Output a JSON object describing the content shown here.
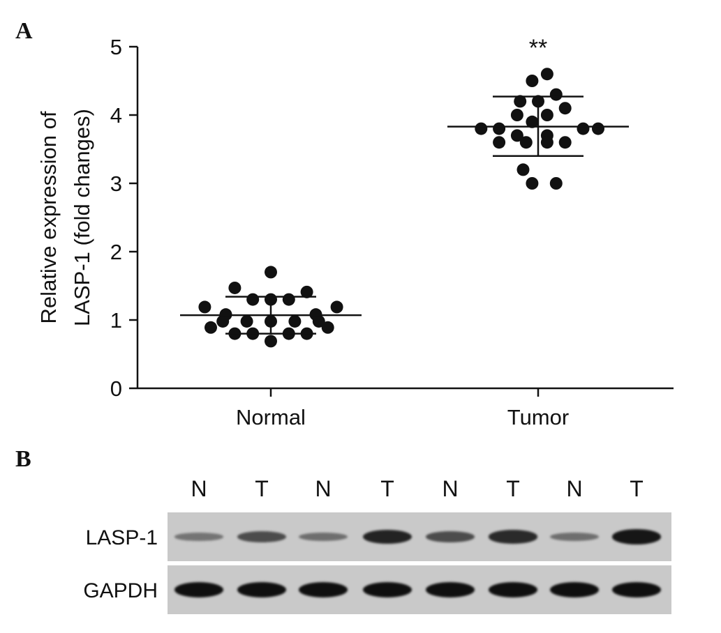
{
  "panels": {
    "a_label": "A",
    "b_label": "B"
  },
  "chart_data": {
    "type": "scatter",
    "title": "",
    "ylabel_line1": "Relative expression of",
    "ylabel_line2": "LASP-1 (fold changes)",
    "xlabel": "",
    "ylim": [
      0,
      5
    ],
    "yticks": [
      "0",
      "1",
      "2",
      "3",
      "4",
      "5"
    ],
    "categories": [
      "Normal",
      "Tumor"
    ],
    "significance": {
      "category": "Tumor",
      "text": "**"
    },
    "grid": false,
    "series": [
      {
        "category": "Normal",
        "mean": 1.07,
        "sd_low": 0.8,
        "sd_high": 1.34,
        "points": [
          {
            "y": 1.7,
            "off": 0.0
          },
          {
            "y": 1.47,
            "off": -1.2
          },
          {
            "y": 1.41,
            "off": 1.2
          },
          {
            "y": 1.3,
            "off": -0.6
          },
          {
            "y": 1.3,
            "off": 0.0
          },
          {
            "y": 1.3,
            "off": 0.6
          },
          {
            "y": 1.19,
            "off": -2.2
          },
          {
            "y": 1.19,
            "off": 2.2
          },
          {
            "y": 1.08,
            "off": -1.5
          },
          {
            "y": 1.08,
            "off": 1.5
          },
          {
            "y": 0.98,
            "off": -1.6
          },
          {
            "y": 0.98,
            "off": -0.8
          },
          {
            "y": 0.98,
            "off": 0.0
          },
          {
            "y": 0.98,
            "off": 0.8
          },
          {
            "y": 0.98,
            "off": 1.6
          },
          {
            "y": 0.89,
            "off": -2.0
          },
          {
            "y": 0.89,
            "off": 1.9
          },
          {
            "y": 0.8,
            "off": -1.2
          },
          {
            "y": 0.8,
            "off": -0.6
          },
          {
            "y": 0.8,
            "off": 0.6
          },
          {
            "y": 0.8,
            "off": 1.2
          },
          {
            "y": 0.69,
            "off": 0.0
          }
        ]
      },
      {
        "category": "Tumor",
        "mean": 3.83,
        "sd_low": 3.4,
        "sd_high": 4.27,
        "points": [
          {
            "y": 4.6,
            "off": 0.3
          },
          {
            "y": 4.5,
            "off": -0.2
          },
          {
            "y": 4.3,
            "off": 0.6
          },
          {
            "y": 4.2,
            "off": -0.6
          },
          {
            "y": 4.2,
            "off": 0.0
          },
          {
            "y": 4.1,
            "off": 0.9
          },
          {
            "y": 4.0,
            "off": -0.7
          },
          {
            "y": 4.0,
            "off": 0.3
          },
          {
            "y": 3.9,
            "off": -0.2
          },
          {
            "y": 3.8,
            "off": -1.9
          },
          {
            "y": 3.8,
            "off": -1.3
          },
          {
            "y": 3.8,
            "off": 1.5
          },
          {
            "y": 3.8,
            "off": 2.0
          },
          {
            "y": 3.7,
            "off": -0.7
          },
          {
            "y": 3.7,
            "off": 0.3
          },
          {
            "y": 3.6,
            "off": -1.3
          },
          {
            "y": 3.6,
            "off": -0.4
          },
          {
            "y": 3.6,
            "off": 0.3
          },
          {
            "y": 3.6,
            "off": 0.9
          },
          {
            "y": 3.2,
            "off": -0.5
          },
          {
            "y": 3.0,
            "off": -0.2
          },
          {
            "y": 3.0,
            "off": 0.6
          }
        ]
      }
    ]
  },
  "blot": {
    "lanes": [
      "N",
      "T",
      "N",
      "T",
      "N",
      "T",
      "N",
      "T"
    ],
    "rows": [
      {
        "label": "LASP-1",
        "intensities": [
          0.25,
          0.55,
          0.3,
          0.85,
          0.55,
          0.8,
          0.3,
          0.95
        ]
      },
      {
        "label": "GAPDH",
        "intensities": [
          1,
          1,
          1,
          1,
          1,
          1,
          1,
          1
        ]
      }
    ]
  }
}
